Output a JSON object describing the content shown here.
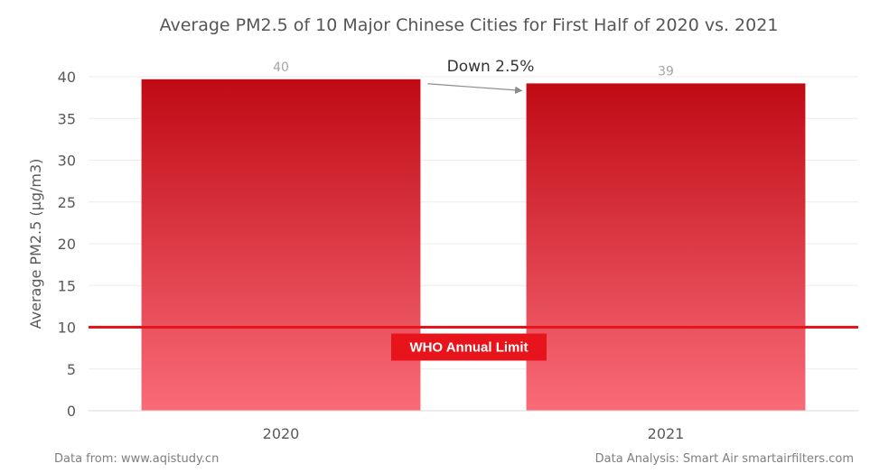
{
  "chart_data": {
    "type": "bar",
    "title": "Average PM2.5 of 10 Major Chinese Cities for First Half of 2020 vs. 2021",
    "categories": [
      "2020",
      "2021"
    ],
    "values": [
      39.7,
      39.2
    ],
    "data_labels": [
      "40",
      "39"
    ],
    "ylabel": "Average PM2.5 (μg/m3)",
    "xlabel": "",
    "ylim": [
      0,
      40
    ],
    "yticks": [
      0,
      5,
      10,
      15,
      20,
      25,
      30,
      35,
      40
    ],
    "grid": true,
    "legend": "none",
    "reference_line": {
      "value": 10,
      "label": "WHO Annual Limit",
      "color": "#e8141c"
    },
    "annotation": {
      "text": "Down 2.5%"
    },
    "bar_gradient": {
      "top": "#c00a14",
      "bottom": "#f96b78"
    }
  },
  "footer": {
    "source": "Data from: www.aqistudy.cn",
    "credit": "Data Analysis: Smart Air smartairfilters.com"
  }
}
